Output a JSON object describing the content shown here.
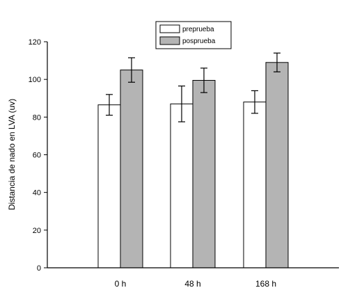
{
  "chart_data": {
    "type": "bar",
    "categories": [
      "0 h",
      "48 h",
      "168 h"
    ],
    "series": [
      {
        "name": "preprueba",
        "values": [
          86.5,
          87,
          88
        ],
        "errors": [
          5.5,
          9.5,
          6
        ],
        "color": "#ffffff"
      },
      {
        "name": "posprueba",
        "values": [
          105,
          99.5,
          109
        ],
        "errors": [
          6.5,
          6.5,
          5
        ],
        "color": "#b4b4b4"
      }
    ],
    "title": "",
    "xlabel": "",
    "ylabel": "Distancia de nado en LVA (uv)",
    "ylim": [
      0,
      120
    ],
    "yticks": [
      "0",
      "20",
      "40",
      "60",
      "80",
      "100",
      "120"
    ],
    "grid": false,
    "legend_position": "top-center"
  }
}
